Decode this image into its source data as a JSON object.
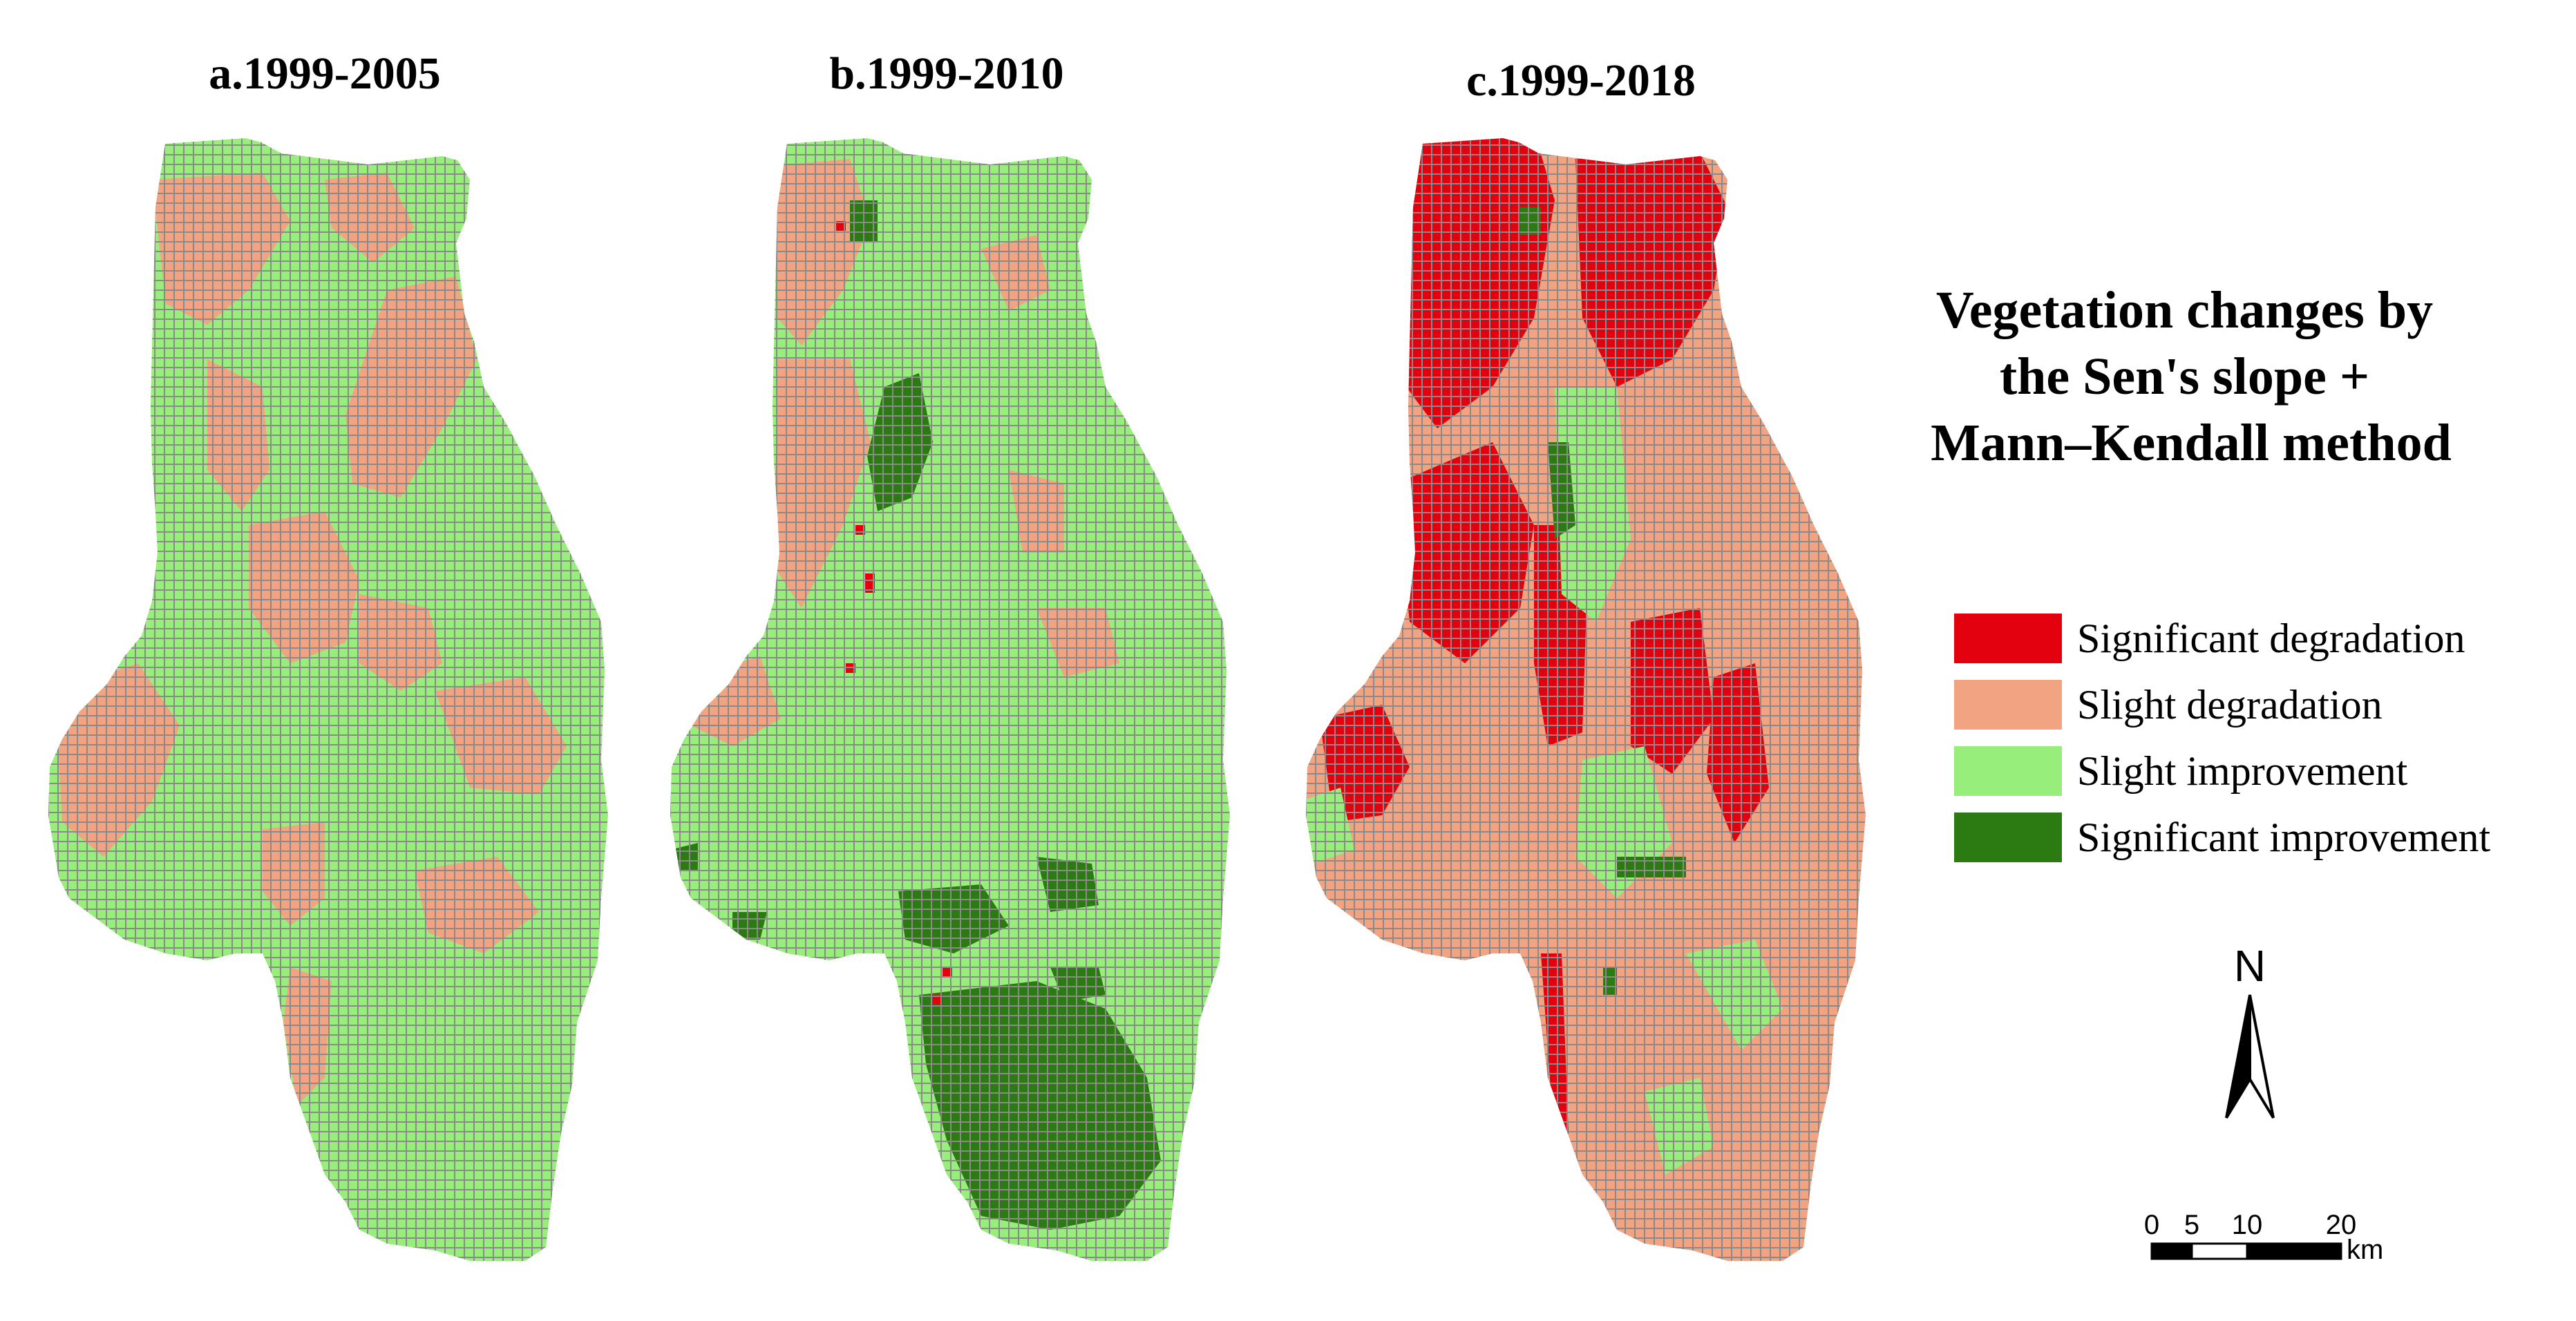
{
  "panels": [
    {
      "title": "a.1999-2005",
      "dominant": "slight-improvement"
    },
    {
      "title": "b.1999-2010",
      "dominant": "slight-improvement"
    },
    {
      "title": "c.1999-2018",
      "dominant": "slight-degradation"
    }
  ],
  "legend": {
    "title_lines": [
      "Vegetation changes by",
      "the Sen's slope +",
      "Mann–Kendall method"
    ],
    "items": [
      {
        "label": "Significant degradation",
        "color": "#e3000f"
      },
      {
        "label": "Slight degradation",
        "color": "#f2a382"
      },
      {
        "label": "Slight improvement",
        "color": "#98ee7a"
      },
      {
        "label": "Significant improvement",
        "color": "#2b7a12"
      }
    ]
  },
  "north_arrow": {
    "label": "N"
  },
  "scale_bar": {
    "ticks": [
      "0",
      "5",
      "10",
      "20"
    ],
    "unit": "km"
  },
  "colors": {
    "grid_line": "#8a8a8a"
  }
}
